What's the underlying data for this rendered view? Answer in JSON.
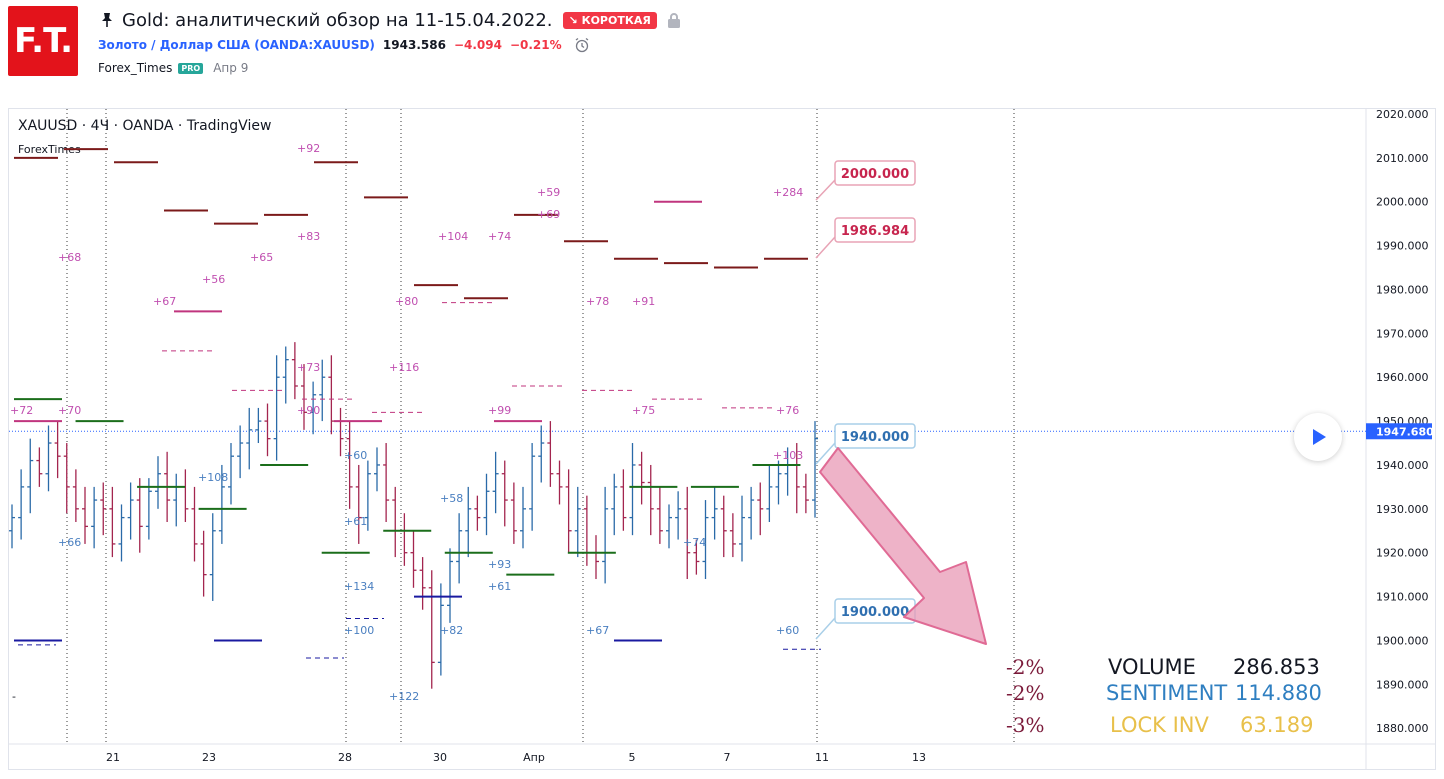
{
  "header": {
    "logo_text": "F.T.",
    "title": "Gold: аналитический обзор на 11-15.04.2022.",
    "badge": "↘ КОРОТКАЯ",
    "symbol": "Золото / Доллар США (OANDA:XAUUSD)",
    "price": "1943.586",
    "change": "−4.094",
    "change_pct": "−0.21%",
    "author": "Forex_Times",
    "author_badge": "PRO",
    "published": "Апр 9"
  },
  "colors": {
    "brand_red": "#e3131b",
    "up_bar": "#2a6aa8",
    "down_bar": "#a3254f",
    "dark_red_level": "#7b1a1a",
    "green_level": "#1b6e1b",
    "magenta_level": "#c0357e",
    "navy_level": "#1a1aa0",
    "arrow": "#e89ab6",
    "sentiment_blue": "#2f7fc1",
    "lock_yellow": "#e8c04a"
  },
  "chart_data": {
    "type": "ohlc",
    "title": "XAUUSD · 4Ч · OANDA · TradingView",
    "watermark": "ForexTimes",
    "ylim": [
      1875,
      2022
    ],
    "y_ticks": [
      "2020.000",
      "2010.000",
      "2000.000",
      "1990.000",
      "1980.000",
      "1970.000",
      "1960.000",
      "1950.000",
      "1940.000",
      "1930.000",
      "1920.000",
      "1910.000",
      "1900.000",
      "1890.000",
      "1880.000"
    ],
    "x_ticks": [
      "21",
      "23",
      "28",
      "30",
      "Апр",
      "5",
      "7",
      "11",
      "13"
    ],
    "current_price": "1947.680",
    "close_series": [
      1928,
      1935,
      1941,
      1938,
      1945,
      1942,
      1935,
      1930,
      1926,
      1932,
      1930,
      1922,
      1928,
      1932,
      1926,
      1934,
      1938,
      1932,
      1935,
      1930,
      1922,
      1915,
      1925,
      1935,
      1942,
      1945,
      1948,
      1950,
      1946,
      1960,
      1964,
      1958,
      1952,
      1956,
      1960,
      1950,
      1946,
      1935,
      1928,
      1938,
      1940,
      1932,
      1925,
      1920,
      1916,
      1912,
      1895,
      1908,
      1918,
      1925,
      1930,
      1928,
      1934,
      1938,
      1932,
      1925,
      1930,
      1942,
      1945,
      1938,
      1935,
      1925,
      1930,
      1920,
      1918,
      1930,
      1935,
      1928,
      1940,
      1936,
      1930,
      1925,
      1928,
      1930,
      1920,
      1918,
      1928,
      1930,
      1925,
      1922,
      1928,
      1932,
      1930,
      1935,
      1938,
      1940,
      1935,
      1932,
      1946
    ],
    "price_labels": [
      "2000.000",
      "1986.984",
      "1940.000",
      "1900.000"
    ],
    "annotations": [
      "+72",
      "+70",
      "+68",
      "+66",
      "+67",
      "+56",
      "+65",
      "+108",
      "+83",
      "+92",
      "+73",
      "+90",
      "+60",
      "+61",
      "+134",
      "+100",
      "+122",
      "+116",
      "+80",
      "+82",
      "+58",
      "+104",
      "+74",
      "+99",
      "+93",
      "+61",
      "+59",
      "+69",
      "+78",
      "+67",
      "+91",
      "+75",
      "+74",
      "+76",
      "+284",
      "+103",
      "+60"
    ],
    "level_lines": {
      "dark_red": [
        2010,
        2012,
        2009,
        1998,
        1995,
        1997,
        2009,
        2001,
        1981,
        1978,
        1997,
        1991,
        1987,
        1986,
        1985,
        1987
      ],
      "green": [
        1955,
        1950,
        1935,
        1930,
        1940,
        1920,
        1925,
        1920,
        1915,
        1920,
        1935,
        1935,
        1940
      ],
      "magenta": [
        1950,
        1975,
        1950,
        1950,
        2000
      ],
      "navy": [
        1900,
        1900,
        1910,
        1900
      ]
    },
    "sentiment_panel": [
      {
        "pct": "-2%",
        "label": "VOLUME",
        "value": "286.853",
        "color": "#131722"
      },
      {
        "pct": "-2%",
        "label": "SENTIMENT",
        "value": "114.880",
        "color": "#2f7fc1"
      },
      {
        "pct": "-3%",
        "label": "LOCK INV",
        "value": "63.189",
        "color": "#e8c04a"
      }
    ]
  }
}
